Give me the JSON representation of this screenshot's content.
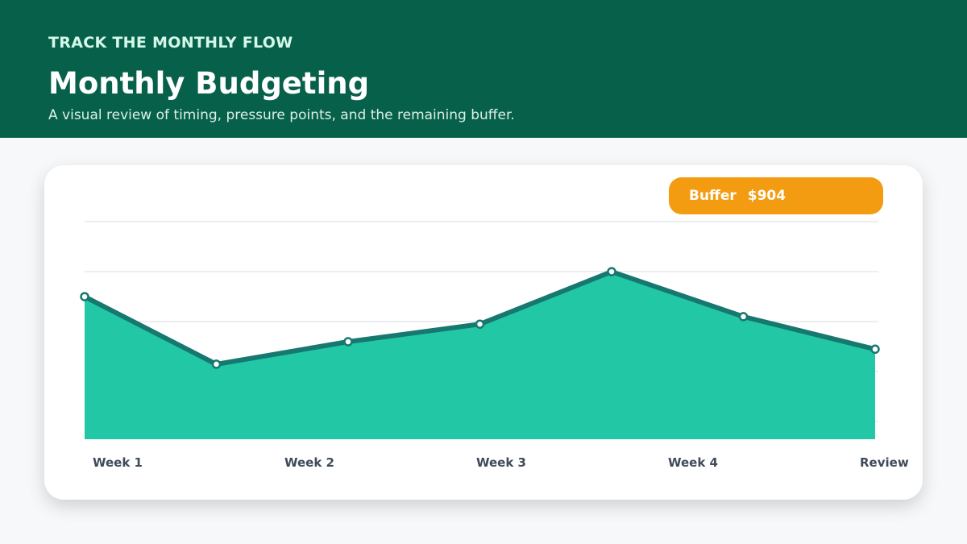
{
  "header": {
    "eyebrow": "TRACK THE MONTHLY FLOW",
    "title": "Monthly Budgeting",
    "subtitle": "A visual review of timing, pressure points, and the remaining buffer."
  },
  "badge": {
    "label": "Buffer",
    "value": "$904"
  },
  "colors": {
    "header_bg": "#07614a",
    "area_fill": "#22c7a6",
    "line": "#16786f",
    "badge": "#f39c12"
  },
  "chart_data": {
    "type": "area",
    "x_ticks": [
      "Week 1",
      "Week 2",
      "Week 3",
      "Week 4",
      "Review"
    ],
    "series": [
      {
        "values": [
          57,
          30,
          39,
          46,
          67,
          49,
          36
        ]
      }
    ],
    "ylim": [
      0,
      87
    ],
    "grid": true,
    "legend": "none"
  }
}
